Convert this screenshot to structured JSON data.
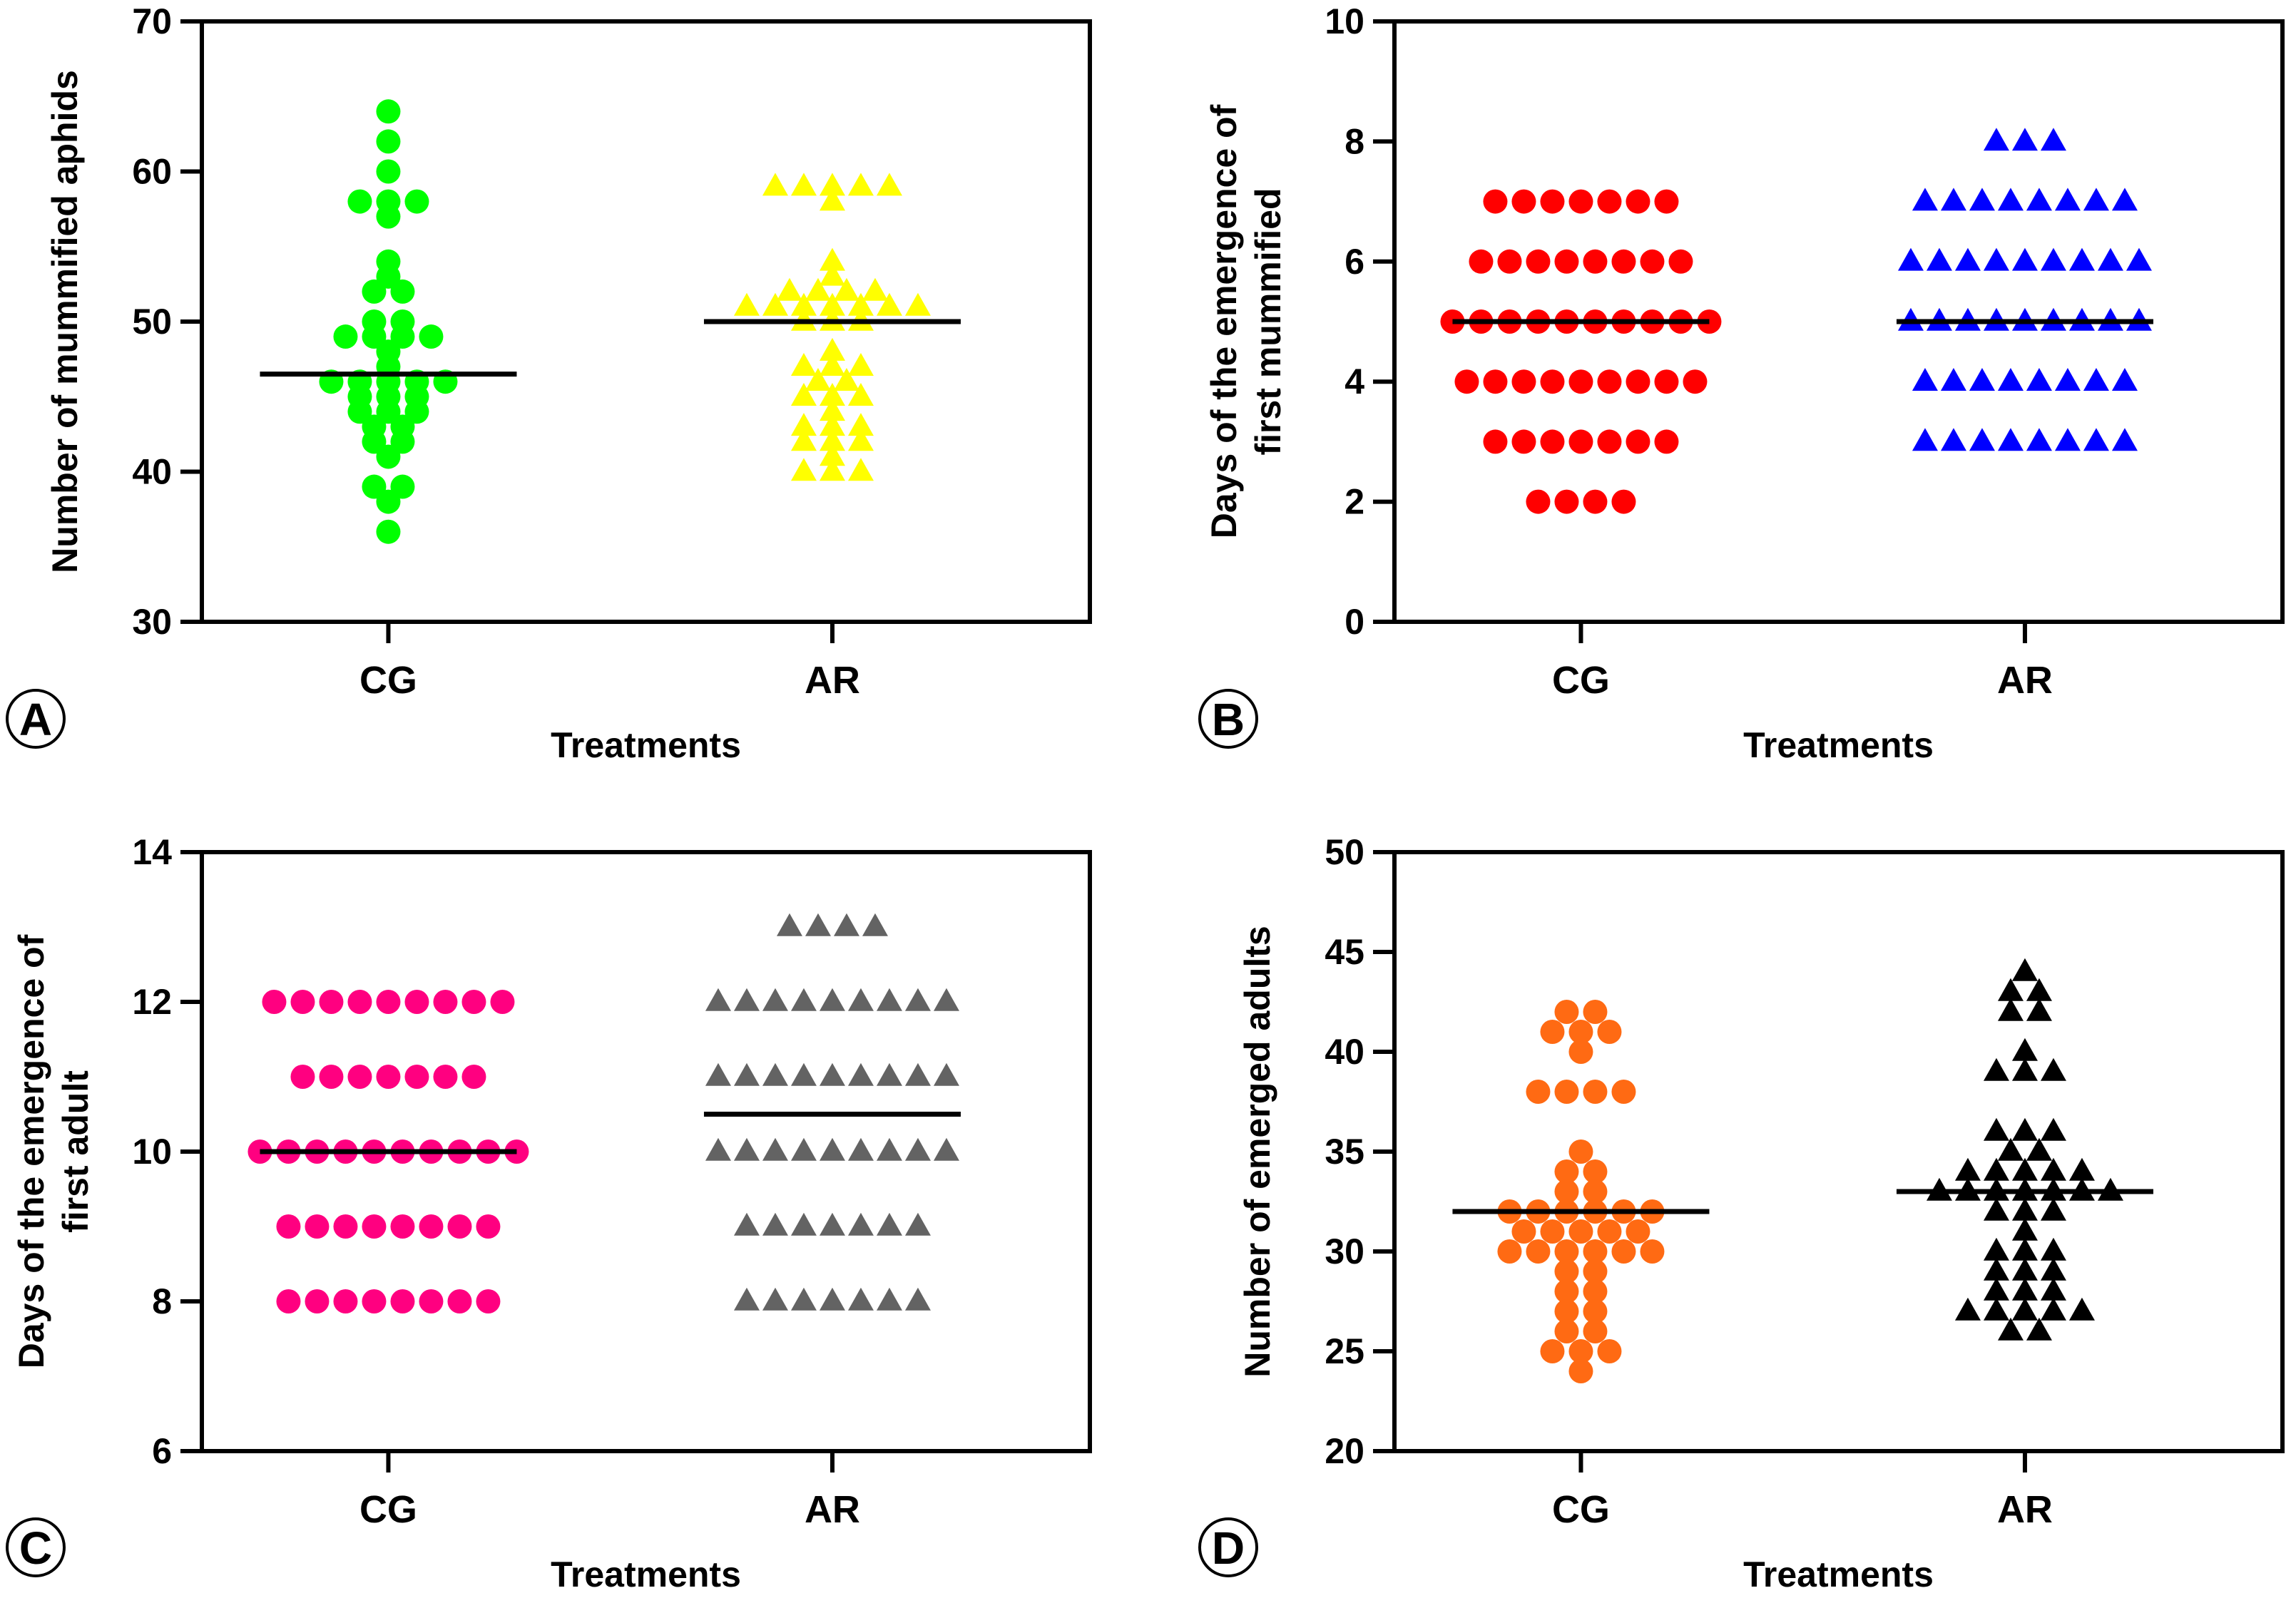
{
  "figure": {
    "panel_labels": [
      "A",
      "B",
      "C",
      "D"
    ]
  },
  "chart_data": [
    {
      "panel": "A",
      "type": "scatter",
      "style": "dot-plot with mean line",
      "xlabel": "Treatments",
      "ylabel": "Number of mummified aphids",
      "categories": [
        "CG",
        "AR"
      ],
      "ylim": [
        30,
        70
      ],
      "yticks": [
        30,
        40,
        50,
        60,
        70
      ],
      "series": [
        {
          "name": "CG",
          "marker": "circle",
          "color": "#00ff00",
          "mean": 46.5,
          "values": [
            64,
            62,
            60,
            58,
            58,
            58,
            57,
            54,
            53,
            52,
            52,
            50,
            50,
            49,
            49,
            49,
            49,
            48,
            47,
            46,
            46,
            46,
            46,
            46,
            45,
            45,
            45,
            44,
            44,
            44,
            43,
            43,
            42,
            42,
            41,
            39,
            39,
            38,
            36
          ]
        },
        {
          "name": "AR",
          "marker": "triangle",
          "color": "#ffff00",
          "mean": 50,
          "values": [
            59,
            59,
            59,
            59,
            59,
            58,
            54,
            53,
            52,
            52,
            52,
            52,
            51,
            51,
            51,
            51,
            51,
            51,
            51,
            50,
            50,
            50,
            48,
            47,
            47,
            47,
            46,
            46,
            45,
            45,
            45,
            44,
            43,
            43,
            43,
            42,
            42,
            42,
            41,
            40,
            40,
            40
          ]
        }
      ]
    },
    {
      "panel": "B",
      "type": "scatter",
      "style": "dot-plot with mean line",
      "xlabel": "Treatments",
      "ylabel": [
        "Days of the emergence of",
        "first mummified"
      ],
      "categories": [
        "CG",
        "AR"
      ],
      "ylim": [
        0,
        10
      ],
      "yticks": [
        0,
        2,
        4,
        6,
        8,
        10
      ],
      "series": [
        {
          "name": "CG",
          "marker": "circle",
          "color": "#ff0000",
          "mean": 5,
          "values": [
            7,
            7,
            7,
            7,
            7,
            7,
            7,
            6,
            6,
            6,
            6,
            6,
            6,
            6,
            6,
            5,
            5,
            5,
            5,
            5,
            5,
            5,
            5,
            5,
            5,
            4,
            4,
            4,
            4,
            4,
            4,
            4,
            4,
            4,
            3,
            3,
            3,
            3,
            3,
            3,
            3,
            2,
            2,
            2,
            2
          ]
        },
        {
          "name": "AR",
          "marker": "triangle",
          "color": "#0000ff",
          "mean": 5,
          "values": [
            8,
            8,
            8,
            7,
            7,
            7,
            7,
            7,
            7,
            7,
            7,
            6,
            6,
            6,
            6,
            6,
            6,
            6,
            6,
            6,
            5,
            5,
            5,
            5,
            5,
            5,
            5,
            5,
            5,
            4,
            4,
            4,
            4,
            4,
            4,
            4,
            4,
            3,
            3,
            3,
            3,
            3,
            3,
            3,
            3
          ]
        }
      ]
    },
    {
      "panel": "C",
      "type": "scatter",
      "style": "dot-plot with mean line",
      "xlabel": "Treatments",
      "ylabel": [
        "Days of the emergence of",
        "first adult"
      ],
      "categories": [
        "CG",
        "AR"
      ],
      "ylim": [
        6,
        14
      ],
      "yticks": [
        6,
        8,
        10,
        12,
        14
      ],
      "series": [
        {
          "name": "CG",
          "marker": "circle",
          "color": "#ff0080",
          "mean": 10,
          "values": [
            12,
            12,
            12,
            12,
            12,
            12,
            12,
            12,
            12,
            11,
            11,
            11,
            11,
            11,
            11,
            11,
            10,
            10,
            10,
            10,
            10,
            10,
            10,
            10,
            10,
            10,
            9,
            9,
            9,
            9,
            9,
            9,
            9,
            9,
            8,
            8,
            8,
            8,
            8,
            8,
            8,
            8
          ]
        },
        {
          "name": "AR",
          "marker": "triangle",
          "color": "#636363",
          "mean": 10.5,
          "values": [
            13,
            13,
            13,
            13,
            12,
            12,
            12,
            12,
            12,
            12,
            12,
            12,
            12,
            11,
            11,
            11,
            11,
            11,
            11,
            11,
            11,
            11,
            10,
            10,
            10,
            10,
            10,
            10,
            10,
            10,
            10,
            9,
            9,
            9,
            9,
            9,
            9,
            9,
            8,
            8,
            8,
            8,
            8,
            8,
            8
          ]
        }
      ]
    },
    {
      "panel": "D",
      "type": "scatter",
      "style": "dot-plot with mean line",
      "xlabel": "Treatments",
      "ylabel": "Number of emerged adults",
      "categories": [
        "CG",
        "AR"
      ],
      "ylim": [
        20,
        50
      ],
      "yticks": [
        20,
        25,
        30,
        35,
        40,
        45,
        50
      ],
      "series": [
        {
          "name": "CG",
          "marker": "circle",
          "color": "#ff6a13",
          "mean": 32,
          "values": [
            42,
            42,
            41,
            41,
            41,
            40,
            38,
            38,
            38,
            38,
            35,
            34,
            34,
            33,
            33,
            32,
            32,
            32,
            32,
            32,
            32,
            31,
            31,
            31,
            31,
            31,
            30,
            30,
            30,
            30,
            30,
            30,
            29,
            29,
            28,
            28,
            27,
            27,
            26,
            26,
            25,
            25,
            25,
            24
          ]
        },
        {
          "name": "AR",
          "marker": "triangle",
          "color": "#000000",
          "mean": 33,
          "values": [
            44,
            43,
            43,
            42,
            42,
            40,
            39,
            39,
            39,
            36,
            36,
            36,
            35,
            35,
            34,
            34,
            34,
            34,
            34,
            33,
            33,
            33,
            33,
            33,
            33,
            33,
            32,
            32,
            32,
            31,
            30,
            30,
            30,
            29,
            29,
            29,
            28,
            28,
            28,
            27,
            27,
            27,
            27,
            27,
            26,
            26
          ]
        }
      ]
    }
  ]
}
